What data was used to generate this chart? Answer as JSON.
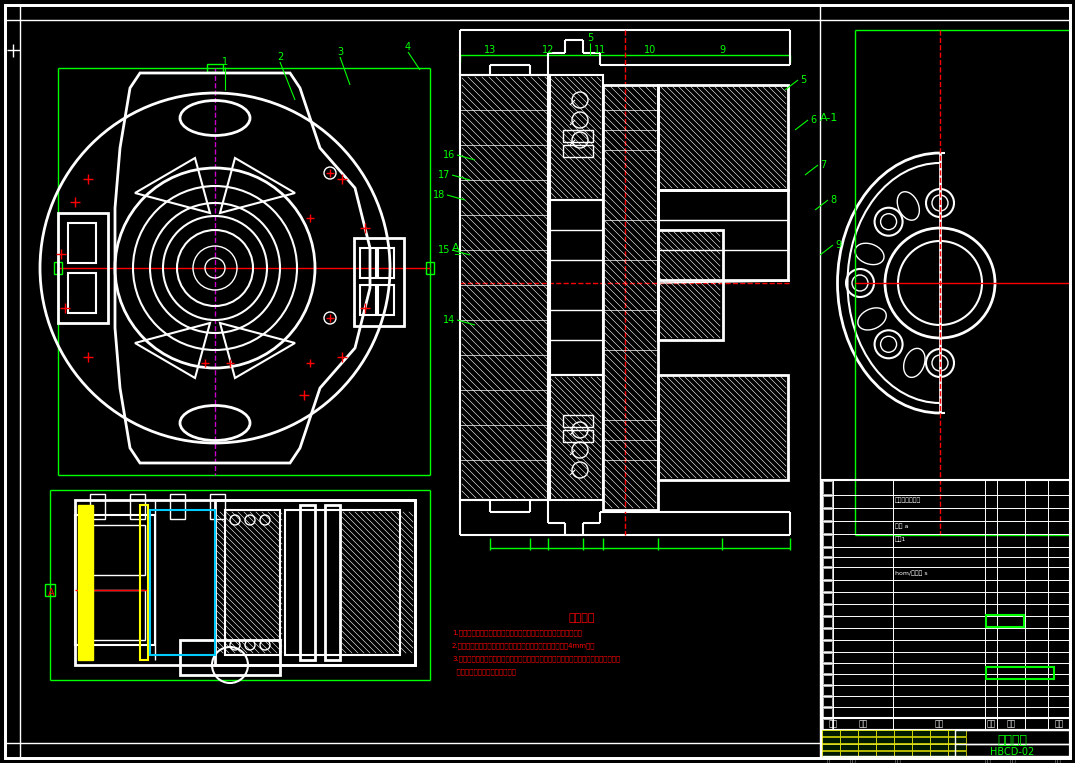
{
  "bg_color": "#000000",
  "white": "#ffffff",
  "green": "#00ff00",
  "red": "#ff0000",
  "yellow": "#ffff00",
  "cyan": "#00ccff",
  "magenta": "#cc00cc",
  "title": "后轮组装",
  "drawing_number": "HBCD-02",
  "tech_req_title": "技术要求",
  "tech_req_lines": [
    "1.装配后各螺钉和螺栓螺母应均匀拧紧，保证装配部件紧固和稳固。",
    "2.轴承与轴配合应采用液体端面密封环密封，油封深度不超出4mm止。",
    "3.装配超精密器应安装紧，严禁行走路径使用不合处的物品及磁台架手，实用后盖防壳，",
    "  避免超精密器具老入不固磁阵。"
  ],
  "figsize": [
    10.75,
    7.63
  ],
  "dpi": 100
}
